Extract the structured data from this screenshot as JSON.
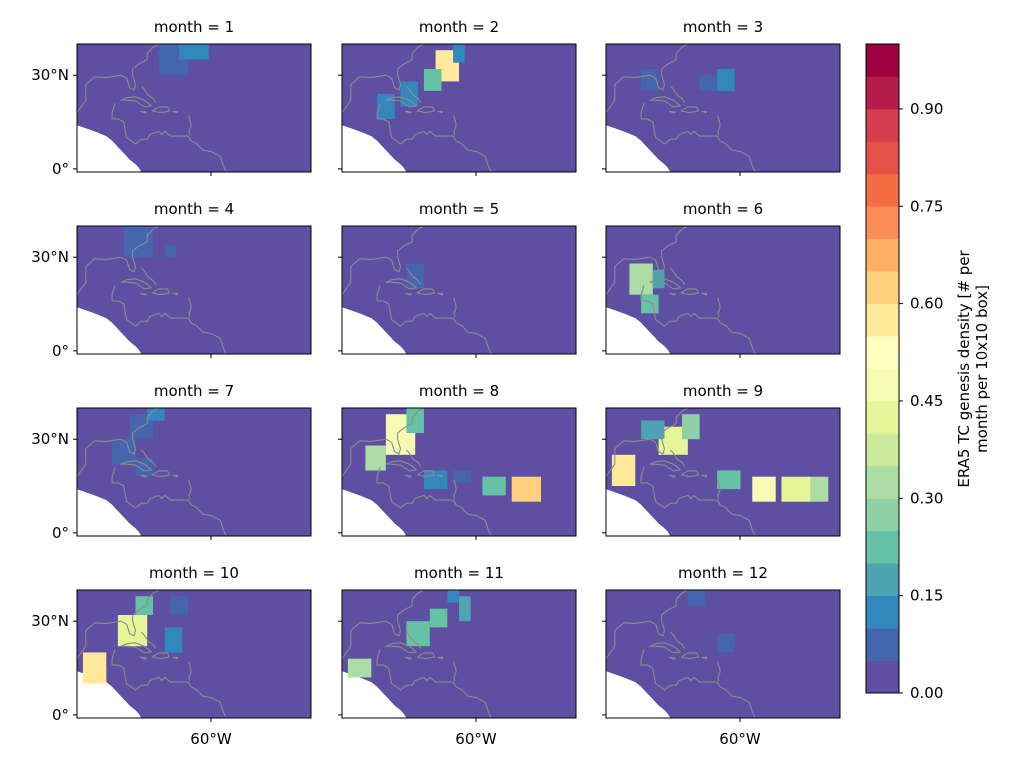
{
  "chart_data": {
    "type": "heatmap",
    "facet_prefix": "month = ",
    "facets": [
      "1",
      "2",
      "3",
      "4",
      "5",
      "6",
      "7",
      "8",
      "9",
      "10",
      "11",
      "12"
    ],
    "lat_ticks": [
      "30°N",
      "0°"
    ],
    "lon_ticks": [
      "60°W"
    ],
    "colorbar": {
      "label_line1": "ERA5 TC genesis density [# per",
      "label_line2": "month per 10x10 box]",
      "ticks": [
        "0.00",
        "0.15",
        "0.30",
        "0.45",
        "0.60",
        "0.75",
        "0.90"
      ],
      "range": [
        0.0,
        1.0
      ],
      "levels": 20,
      "colors": [
        "#5e4fa2",
        "#4665af",
        "#3288bd",
        "#4fa4b1",
        "#66c2a5",
        "#8ed1a4",
        "#abdda4",
        "#cbe99d",
        "#e6f598",
        "#f5fbb2",
        "#fffebe",
        "#fee89a",
        "#fed07e",
        "#fdb063",
        "#fb8d59",
        "#f46d43",
        "#e55148",
        "#d53e4f",
        "#b51e4a",
        "#9e0142"
      ]
    },
    "cells": [
      [
        [
          -72,
          30,
          -62,
          40,
          0.08
        ],
        [
          -65,
          35,
          -55,
          40,
          0.1
        ],
        [
          -88,
          25,
          -82,
          30,
          0.04
        ]
      ],
      [
        [
          -68,
          28,
          -60,
          38,
          0.55
        ],
        [
          -72,
          25,
          -66,
          32,
          0.22
        ],
        [
          -80,
          20,
          -74,
          28,
          0.12
        ],
        [
          -88,
          16,
          -82,
          24,
          0.1
        ],
        [
          -62,
          34,
          -58,
          40,
          0.1
        ]
      ],
      [
        [
          -88,
          25,
          -82,
          32,
          0.06
        ],
        [
          -62,
          25,
          -56,
          32,
          0.1
        ],
        [
          -68,
          25,
          -62,
          30,
          0.05
        ]
      ],
      [
        [
          -84,
          30,
          -74,
          40,
          0.06
        ],
        [
          -70,
          30,
          -66,
          34,
          0.05
        ]
      ],
      [
        [
          -78,
          20,
          -72,
          28,
          0.05
        ]
      ],
      [
        [
          -92,
          18,
          -84,
          28,
          0.3
        ],
        [
          -88,
          12,
          -82,
          18,
          0.2
        ],
        [
          -84,
          20,
          -80,
          26,
          0.15
        ],
        [
          -55,
          22,
          -50,
          30,
          0.04
        ]
      ],
      [
        [
          -82,
          30,
          -74,
          38,
          0.08
        ],
        [
          -88,
          22,
          -80,
          30,
          0.05
        ],
        [
          -76,
          36,
          -70,
          40,
          0.1
        ],
        [
          -80,
          18,
          -74,
          24,
          0.05
        ]
      ],
      [
        [
          -85,
          25,
          -75,
          38,
          0.45
        ],
        [
          -92,
          20,
          -85,
          28,
          0.3
        ],
        [
          -78,
          32,
          -72,
          40,
          0.2
        ],
        [
          -42,
          10,
          -32,
          18,
          0.6
        ],
        [
          -52,
          12,
          -44,
          18,
          0.2
        ],
        [
          -72,
          14,
          -64,
          20,
          0.1
        ],
        [
          -62,
          16,
          -56,
          20,
          0.05
        ]
      ],
      [
        [
          -98,
          15,
          -90,
          25,
          0.55
        ],
        [
          -82,
          25,
          -72,
          34,
          0.4
        ],
        [
          -74,
          30,
          -68,
          38,
          0.25
        ],
        [
          -62,
          14,
          -54,
          20,
          0.2
        ],
        [
          -50,
          10,
          -42,
          18,
          0.45
        ],
        [
          -40,
          10,
          -30,
          18,
          0.4
        ],
        [
          -30,
          10,
          -24,
          18,
          0.3
        ],
        [
          -88,
          30,
          -80,
          36,
          0.15
        ]
      ],
      [
        [
          -98,
          10,
          -90,
          20,
          0.55
        ],
        [
          -86,
          22,
          -76,
          32,
          0.4
        ],
        [
          -80,
          32,
          -74,
          38,
          0.2
        ],
        [
          -70,
          20,
          -64,
          28,
          0.1
        ],
        [
          -68,
          32,
          -62,
          38,
          0.05
        ]
      ],
      [
        [
          -98,
          12,
          -90,
          18,
          0.3
        ],
        [
          -78,
          22,
          -70,
          30,
          0.2
        ],
        [
          -70,
          28,
          -64,
          34,
          0.2
        ],
        [
          -60,
          30,
          -56,
          38,
          0.15
        ],
        [
          -64,
          36,
          -60,
          40,
          0.1
        ]
      ],
      [
        [
          -72,
          35,
          -66,
          40,
          0.05
        ],
        [
          -62,
          20,
          -56,
          26,
          0.08
        ]
      ]
    ]
  }
}
